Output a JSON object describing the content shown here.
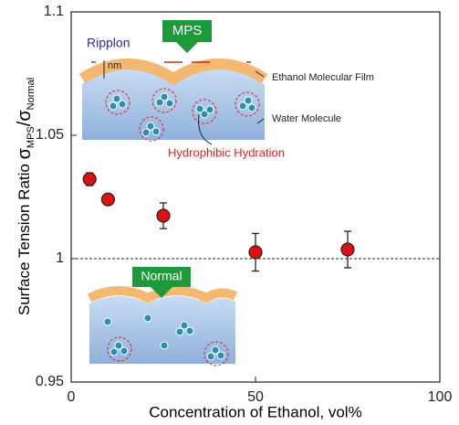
{
  "chart_data": {
    "type": "scatter",
    "x_label": "Concentration of Ethanol, vol%",
    "y_label": [
      "Surface Tension Ratio  ",
      "σ",
      "MPS",
      "/σ",
      "Normal"
    ],
    "x": [
      5,
      10,
      25,
      50,
      75
    ],
    "series": [
      {
        "color": "#e01010",
        "values": [
          1.0322,
          1.024,
          1.0174,
          1.0026,
          1.0037
        ],
        "errors": [
          0.0026,
          0.0022,
          0.0052,
          0.0076,
          0.0074
        ]
      }
    ],
    "xlim": [
      0,
      100
    ],
    "xticks": [
      0,
      50,
      100
    ],
    "ylim": [
      0.95,
      1.1
    ],
    "yticks": [
      0.95,
      1,
      1.05,
      1.1
    ],
    "reference_line": 1,
    "annotations": {
      "mps": "MPS",
      "ripplon": "Ripplon",
      "nm": "nm",
      "film": "Ethanol Molecular Film",
      "water": "Water Molecule",
      "hydration": "Hydrophibic Hydration",
      "normal": "Normal"
    }
  }
}
